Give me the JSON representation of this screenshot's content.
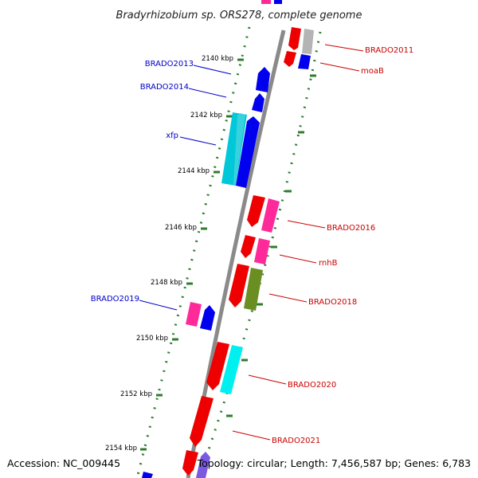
{
  "title": "Bradyrhizobium sp. ORS278, complete genome",
  "footer": {
    "accession": "Accession: NC_009445",
    "summary": "Topology: circular; Length: 7,456,587 bp; Genes: 6,783"
  },
  "colors": {
    "backbone": "#8a8a8a",
    "tick": "#2e7d2e",
    "forward_label": "#0000cc",
    "reverse_label": "#cc0000",
    "blue": "#0000ee",
    "cyan": "#00c8d8",
    "red": "#ee0000",
    "pink": "#ff2a9a",
    "olive": "#6b8e23",
    "gray": "#b4b4b4"
  },
  "ticks": [
    "2140 kbp",
    "2142 kbp",
    "2144 kbp",
    "2146 kbp",
    "2148 kbp",
    "2150 kbp",
    "2152 kbp",
    "2154 kbp"
  ],
  "labels": {
    "left": [
      "BRADO2013",
      "BRADO2014",
      "xfp",
      "BRADO2019"
    ],
    "right": [
      "BRADO2011",
      "moaB",
      "BRADO2016",
      "rnhB",
      "BRADO2018",
      "BRADO2020",
      "BRADO2021"
    ]
  }
}
